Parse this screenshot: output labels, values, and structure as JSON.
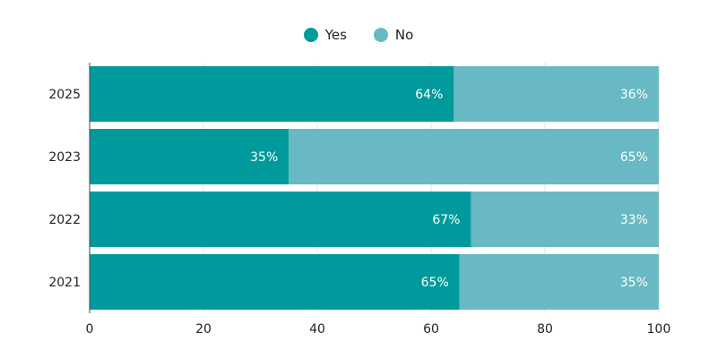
{
  "chart_data": {
    "type": "bar",
    "orientation": "horizontal",
    "stacked": true,
    "categories": [
      "2025",
      "2023",
      "2022",
      "2021"
    ],
    "series": [
      {
        "name": "Yes",
        "color": "#009a9c",
        "values": [
          64,
          35,
          67,
          65
        ],
        "labels": [
          "64%",
          "35%",
          "67%",
          "65%"
        ]
      },
      {
        "name": "No",
        "color": "#68b9c3",
        "values": [
          36,
          65,
          33,
          35
        ],
        "labels": [
          "36%",
          "65%",
          "33%",
          "35%"
        ]
      }
    ],
    "x_ticks": [
      "0",
      "20",
      "40",
      "60",
      "80",
      "100"
    ],
    "xlim": [
      0,
      100
    ],
    "grid": true,
    "legend_position": "top-center"
  }
}
